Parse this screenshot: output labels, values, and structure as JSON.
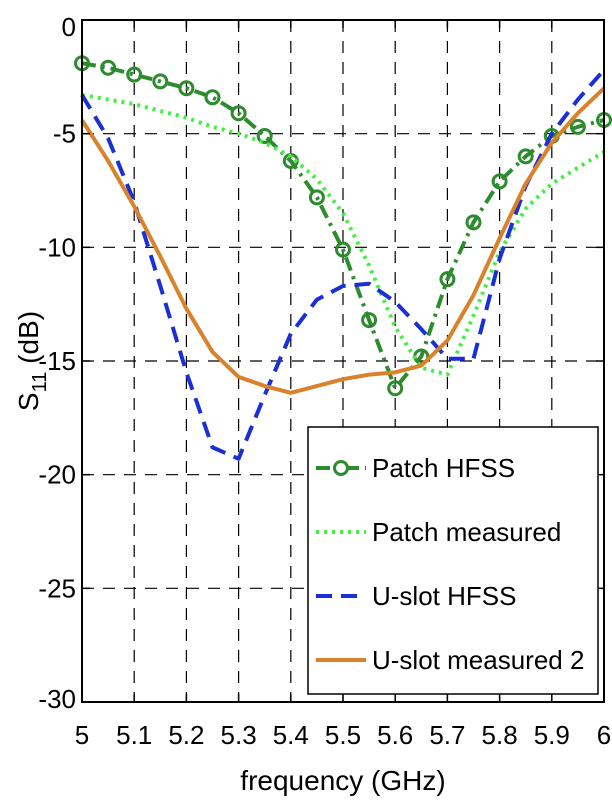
{
  "chart_data": {
    "type": "line",
    "xlabel": "frequency (GHz)",
    "ylabel": {
      "base": "S",
      "sub": "11",
      "rest": " (dB)"
    },
    "xlim": [
      5,
      6
    ],
    "ylim": [
      -30,
      0
    ],
    "xticks": [
      5,
      5.1,
      5.2,
      5.3,
      5.4,
      5.5,
      5.6,
      5.7,
      5.8,
      5.9,
      6
    ],
    "xtick_labels": [
      "5",
      "5.1",
      "5.2",
      "5.3",
      "5.4",
      "5.5",
      "5.6",
      "5.7",
      "5.8",
      "5.9",
      "6"
    ],
    "yticks": [
      0,
      -5,
      -10,
      -15,
      -20,
      -25,
      -30
    ],
    "ytick_labels": [
      "0",
      "-5",
      "-10",
      "-15",
      "-20",
      "-25",
      "-30"
    ],
    "grid": true,
    "legend_position": "bottom-right",
    "series": [
      {
        "name": "Patch HFSS",
        "color": "#2e8b2e",
        "style": "dash-dot",
        "marker": "circle",
        "x": [
          5.0,
          5.05,
          5.1,
          5.15,
          5.2,
          5.25,
          5.3,
          5.35,
          5.4,
          5.45,
          5.5,
          5.55,
          5.6,
          5.65,
          5.7,
          5.75,
          5.8,
          5.85,
          5.9,
          5.95,
          6.0
        ],
        "y": [
          -1.9,
          -2.1,
          -2.4,
          -2.7,
          -3.0,
          -3.4,
          -4.1,
          -5.1,
          -6.2,
          -7.8,
          -10.1,
          -13.2,
          -16.2,
          -14.8,
          -11.4,
          -8.9,
          -7.1,
          -6.0,
          -5.1,
          -4.7,
          -4.4
        ]
      },
      {
        "name": "Patch measured",
        "color": "#44ee44",
        "style": "dotted",
        "marker": "none",
        "x": [
          5.0,
          5.05,
          5.1,
          5.15,
          5.2,
          5.25,
          5.3,
          5.35,
          5.4,
          5.45,
          5.5,
          5.55,
          5.6,
          5.65,
          5.7,
          5.75,
          5.8,
          5.85,
          5.9,
          5.95,
          6.0
        ],
        "y": [
          -3.3,
          -3.5,
          -3.7,
          -4.0,
          -4.3,
          -4.7,
          -5.0,
          -5.4,
          -6.0,
          -7.0,
          -8.5,
          -10.8,
          -13.5,
          -15.3,
          -15.6,
          -13.0,
          -10.2,
          -8.3,
          -7.2,
          -6.5,
          -5.8
        ]
      },
      {
        "name": "U-slot HFSS",
        "color": "#1a2fd6",
        "style": "dashed",
        "marker": "none",
        "x": [
          5.0,
          5.05,
          5.1,
          5.15,
          5.2,
          5.25,
          5.3,
          5.35,
          5.4,
          5.45,
          5.5,
          5.55,
          5.6,
          5.65,
          5.7,
          5.75,
          5.8,
          5.85,
          5.9,
          5.95,
          6.0
        ],
        "y": [
          -3.3,
          -5.2,
          -8.0,
          -11.7,
          -15.5,
          -18.8,
          -19.3,
          -16.5,
          -13.8,
          -12.3,
          -11.7,
          -11.6,
          -12.4,
          -13.6,
          -14.9,
          -14.9,
          -10.5,
          -7.3,
          -5.0,
          -3.5,
          -2.2
        ]
      },
      {
        "name": "U-slot measured 2",
        "color": "#d9822b",
        "style": "solid",
        "marker": "none",
        "x": [
          5.0,
          5.05,
          5.1,
          5.15,
          5.2,
          5.25,
          5.3,
          5.35,
          5.4,
          5.45,
          5.5,
          5.55,
          5.6,
          5.65,
          5.7,
          5.75,
          5.8,
          5.85,
          5.9,
          5.95,
          6.0
        ],
        "y": [
          -4.4,
          -6.2,
          -8.2,
          -10.4,
          -12.7,
          -14.6,
          -15.7,
          -16.1,
          -16.4,
          -16.1,
          -15.8,
          -15.6,
          -15.5,
          -15.2,
          -14.1,
          -12.1,
          -9.6,
          -7.2,
          -5.4,
          -4.1,
          -3.0
        ]
      }
    ]
  }
}
